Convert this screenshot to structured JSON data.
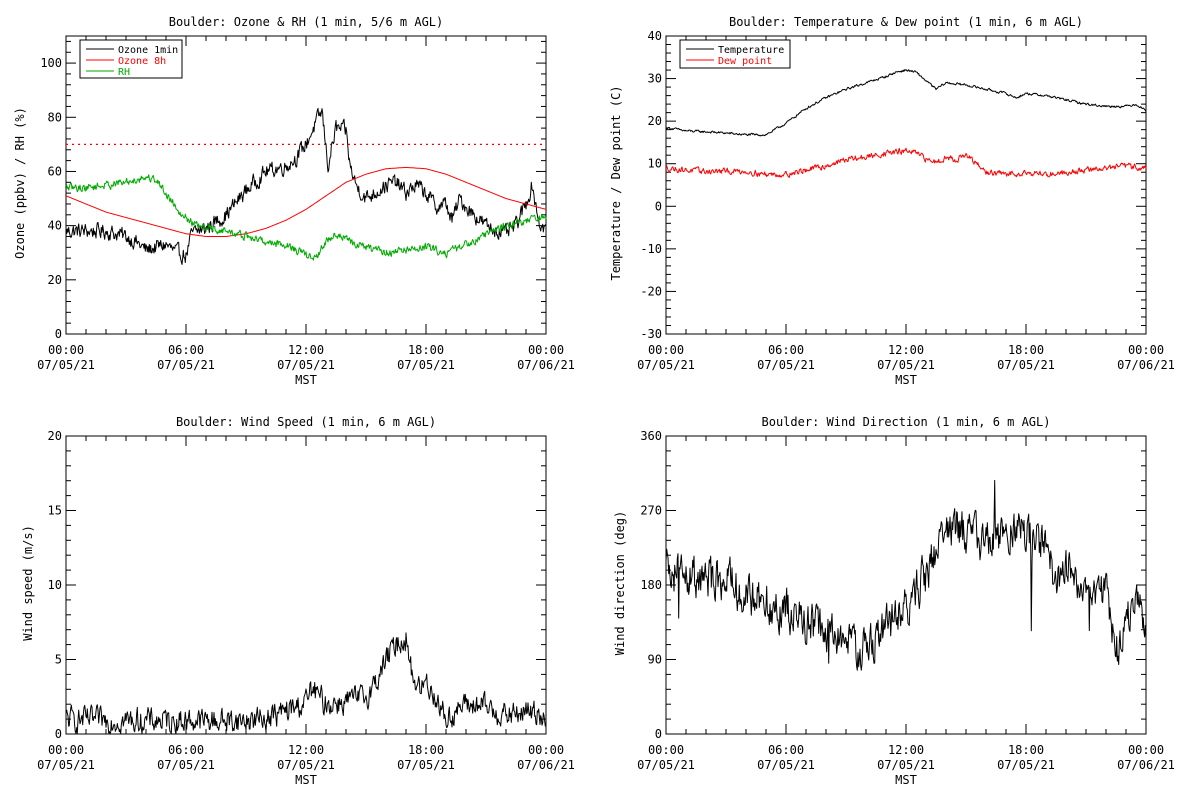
{
  "chart_data": [
    {
      "type": "line",
      "title": "Boulder: Ozone & RH (1 min, 5/6 m AGL)",
      "ylabel": "Ozone (ppbv) / RH (%)",
      "xlabel": "MST",
      "xlim": [
        0,
        24
      ],
      "ylim": [
        0,
        110
      ],
      "yticks": [
        0,
        20,
        40,
        60,
        80,
        100
      ],
      "xticks": [
        {
          "x": 0,
          "time": "00:00",
          "date": "07/05/21"
        },
        {
          "x": 6,
          "time": "06:00",
          "date": "07/05/21"
        },
        {
          "x": 12,
          "time": "12:00",
          "date": "07/05/21"
        },
        {
          "x": 18,
          "time": "18:00",
          "date": "07/05/21"
        },
        {
          "x": 24,
          "time": "00:00",
          "date": "07/06/21"
        }
      ],
      "grid": false,
      "legend": "top-left",
      "reference_line": {
        "y": 70,
        "color": "#ff0000",
        "style": "dotted"
      },
      "series": [
        {
          "name": "Ozone 1min",
          "color": "#000000",
          "noise": 2.5,
          "x": [
            0,
            1,
            2,
            3,
            3.5,
            4,
            5,
            5.5,
            6,
            6.3,
            6.6,
            7,
            8,
            9,
            10,
            11,
            11.5,
            12,
            12.5,
            12.8,
            13.1,
            13.5,
            14,
            14.2,
            14.5,
            15,
            16,
            16.5,
            17,
            17.5,
            18,
            18.5,
            19,
            19.3,
            19.7,
            20,
            21,
            22,
            22.5,
            23,
            23.3,
            23.7,
            24
          ],
          "y": [
            38,
            38,
            38,
            36,
            34,
            31,
            33,
            30,
            29,
            37,
            38,
            39,
            44,
            53,
            60,
            62,
            65,
            70,
            78,
            82,
            62,
            76,
            75,
            62,
            55,
            50,
            55,
            56,
            52,
            55,
            52,
            47,
            48,
            42,
            50,
            47,
            40,
            37,
            40,
            48,
            55,
            40,
            39
          ]
        },
        {
          "name": "Ozone 8h",
          "color": "#ff0000",
          "noise": 0,
          "x": [
            0,
            1,
            2,
            3,
            4,
            5,
            6,
            7,
            8,
            9,
            10,
            11,
            12,
            13,
            14,
            15,
            16,
            17,
            18,
            19,
            20,
            21,
            22,
            23,
            24
          ],
          "y": [
            51,
            48,
            45,
            43,
            41,
            39,
            37,
            36,
            36,
            37,
            39,
            42,
            46,
            51,
            56,
            59,
            61,
            61.5,
            61,
            59,
            56,
            53,
            50,
            48,
            46
          ]
        },
        {
          "name": "RH",
          "color": "#00aa00",
          "noise": 1.3,
          "x": [
            0,
            1,
            2,
            3,
            4,
            4.5,
            5,
            5.5,
            6,
            6.5,
            7,
            8,
            9,
            10,
            11,
            11.5,
            12,
            12.5,
            13,
            13.5,
            14,
            14.5,
            15,
            16,
            17,
            18,
            19,
            20,
            21,
            22,
            23,
            24
          ],
          "y": [
            54,
            54,
            55,
            56,
            58,
            57,
            52,
            47,
            43,
            40,
            39,
            38,
            36,
            34,
            33,
            31,
            29,
            28,
            34,
            37,
            35,
            33,
            32,
            30,
            31,
            32,
            30,
            33,
            37,
            40,
            42,
            43
          ]
        }
      ]
    },
    {
      "type": "line",
      "title": "Boulder: Temperature & Dew point (1 min, 6 m AGL)",
      "ylabel": "Temperature / Dew point (C)",
      "xlabel": "MST",
      "xlim": [
        0,
        24
      ],
      "ylim": [
        -30,
        40
      ],
      "yticks": [
        -30,
        -20,
        -10,
        0,
        10,
        20,
        30,
        40
      ],
      "xticks": [
        {
          "x": 0,
          "time": "00:00",
          "date": "07/05/21"
        },
        {
          "x": 6,
          "time": "06:00",
          "date": "07/05/21"
        },
        {
          "x": 12,
          "time": "12:00",
          "date": "07/05/21"
        },
        {
          "x": 18,
          "time": "18:00",
          "date": "07/05/21"
        },
        {
          "x": 24,
          "time": "00:00",
          "date": "07/06/21"
        }
      ],
      "grid": false,
      "legend": "top-left",
      "series": [
        {
          "name": "Temperature",
          "color": "#000000",
          "noise": 0.25,
          "x": [
            0,
            1,
            2,
            3,
            4,
            5,
            6,
            7,
            8,
            9,
            10,
            11,
            11.5,
            12,
            12.5,
            13,
            13.5,
            14,
            15,
            16,
            17,
            17.5,
            18,
            19,
            20,
            21,
            22,
            23,
            23.5,
            24
          ],
          "y": [
            18.5,
            17.7,
            17.5,
            17.2,
            16.8,
            16.8,
            19.5,
            23,
            25.5,
            27.5,
            29,
            30.5,
            31.5,
            32,
            31.5,
            29.5,
            27.5,
            29,
            28.5,
            27.5,
            26.5,
            25.5,
            26.5,
            26,
            25,
            24,
            23.5,
            23.5,
            24,
            22.5
          ]
        },
        {
          "name": "Dew point",
          "color": "#ff0000",
          "noise": 0.6,
          "x": [
            0,
            1,
            2,
            3,
            4,
            5,
            6,
            7,
            8,
            9,
            10,
            11,
            12,
            12.5,
            13,
            13.5,
            14,
            14.5,
            15,
            15.5,
            16,
            17,
            18,
            19,
            20,
            21,
            22,
            23,
            24
          ],
          "y": [
            9,
            8.5,
            8.2,
            8.2,
            8.2,
            7.5,
            7.5,
            8.5,
            9.5,
            11,
            11.5,
            12.5,
            13,
            12.5,
            11,
            10.5,
            11.5,
            11,
            12,
            10,
            8,
            7.5,
            8,
            7.5,
            8,
            8.5,
            9,
            9.5,
            9
          ]
        }
      ]
    },
    {
      "type": "line",
      "title": "Boulder: Wind Speed (1 min, 6 m AGL)",
      "ylabel": "Wind speed (m/s)",
      "xlabel": "MST",
      "xlim": [
        0,
        24
      ],
      "ylim": [
        0,
        20
      ],
      "yticks": [
        0,
        5,
        10,
        15,
        20
      ],
      "xticks": [
        {
          "x": 0,
          "time": "00:00",
          "date": "07/05/21"
        },
        {
          "x": 6,
          "time": "06:00",
          "date": "07/05/21"
        },
        {
          "x": 12,
          "time": "12:00",
          "date": "07/05/21"
        },
        {
          "x": 18,
          "time": "18:00",
          "date": "07/05/21"
        },
        {
          "x": 24,
          "time": "00:00",
          "date": "07/06/21"
        }
      ],
      "grid": false,
      "series": [
        {
          "name": "",
          "color": "#000000",
          "noise": 0.7,
          "min": 0,
          "x": [
            0,
            2,
            4,
            6,
            8,
            9,
            10,
            11,
            11.5,
            12,
            12.3,
            13,
            14,
            15,
            15.5,
            16,
            16.5,
            17,
            17.3,
            17.7,
            18,
            18.5,
            19,
            19.5,
            20,
            21,
            22,
            23,
            24
          ],
          "y": [
            1,
            0.9,
            0.9,
            0.9,
            0.9,
            0.9,
            1.1,
            1.5,
            1.8,
            2.2,
            3,
            2,
            2.2,
            2.5,
            3.5,
            5,
            6,
            6.5,
            4,
            3,
            3.5,
            2.5,
            1,
            1.5,
            2,
            1.8,
            1.2,
            1.5,
            1.3
          ]
        }
      ]
    },
    {
      "type": "line",
      "title": "Boulder: Wind Direction (1 min, 6 m AGL)",
      "ylabel": "Wind direction (deg)",
      "xlabel": "MST",
      "xlim": [
        0,
        24
      ],
      "ylim": [
        0,
        360
      ],
      "yticks": [
        0,
        90,
        180,
        270,
        360
      ],
      "xticks": [
        {
          "x": 0,
          "time": "00:00",
          "date": "07/05/21"
        },
        {
          "x": 6,
          "time": "06:00",
          "date": "07/05/21"
        },
        {
          "x": 12,
          "time": "12:00",
          "date": "07/05/21"
        },
        {
          "x": 18,
          "time": "18:00",
          "date": "07/05/21"
        },
        {
          "x": 24,
          "time": "00:00",
          "date": "07/06/21"
        }
      ],
      "grid": false,
      "series": [
        {
          "name": "",
          "color": "#000000",
          "noise": 22,
          "min": 0,
          "max": 360,
          "x": [
            0,
            1,
            2,
            3,
            4,
            5,
            6,
            7,
            8,
            9,
            10,
            11,
            12,
            13,
            13.5,
            14,
            14.5,
            15,
            16,
            17,
            17.5,
            18,
            19,
            19.5,
            20,
            21,
            22,
            22.5,
            23,
            23.5,
            24
          ],
          "y": [
            195,
            190,
            185,
            190,
            165,
            160,
            150,
            135,
            125,
            110,
            100,
            130,
            150,
            195,
            220,
            245,
            255,
            240,
            235,
            240,
            250,
            240,
            225,
            180,
            200,
            185,
            165,
            95,
            140,
            165,
            120
          ]
        }
      ]
    }
  ],
  "legend_labels": {
    "ozone_1min": "Ozone 1min",
    "ozone_8h": "Ozone 8h",
    "rh": "RH",
    "temperature": "Temperature",
    "dew_point": "Dew point"
  }
}
